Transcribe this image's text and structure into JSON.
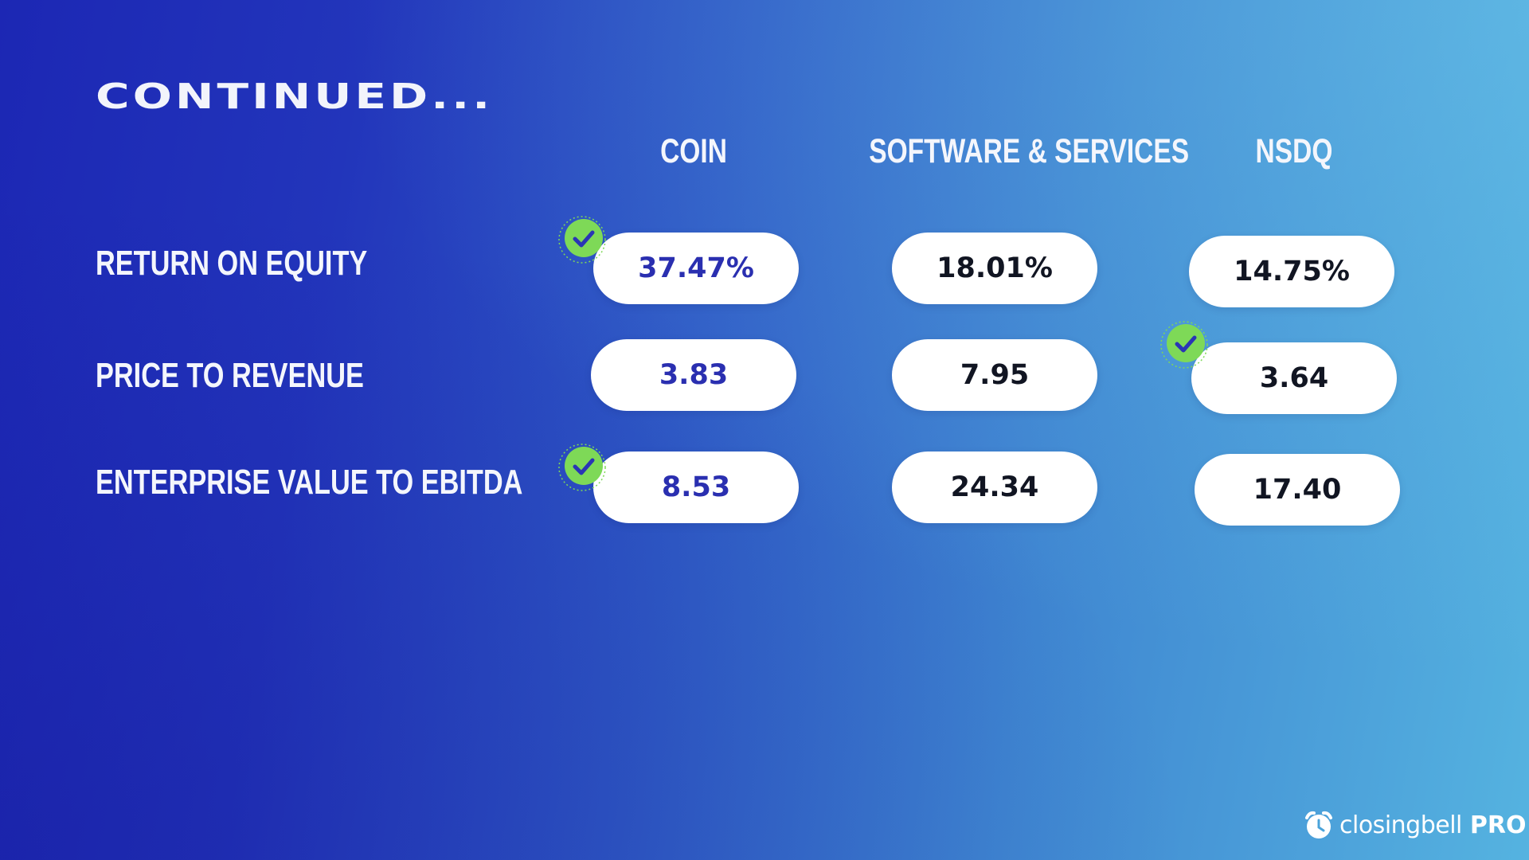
{
  "slide": {
    "title": "CONTINUED...",
    "columns": [
      "COIN",
      "SOFTWARE & SERVICES",
      "NSDQ"
    ],
    "rows": [
      {
        "label": "RETURN ON EQUITY",
        "values": [
          "37.47%",
          "18.01%",
          "14.75%"
        ],
        "best": "COIN"
      },
      {
        "label": "PRICE TO REVENUE",
        "values": [
          "3.83",
          "7.95",
          "3.64"
        ],
        "best": "NSDQ"
      },
      {
        "label": "ENTERPRISE VALUE TO EBITDA",
        "values": [
          "8.53",
          "24.34",
          "17.40"
        ],
        "best": "COIN"
      }
    ]
  },
  "brand": {
    "name": "closingbell",
    "tier": "PRO",
    "icon": "alarm-clock-icon"
  },
  "colors": {
    "background_start": "#1c27b4",
    "background_end": "#55b3e0",
    "coin_value": "#2a2fb0",
    "check_green": "#7ed957",
    "check_mark": "#2a35b5"
  }
}
